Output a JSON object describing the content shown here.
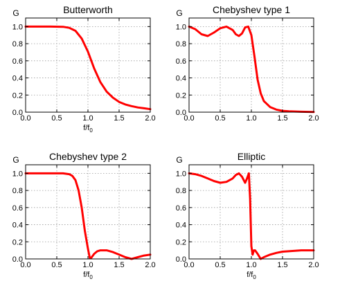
{
  "colors": {
    "curve": "#ff0000",
    "grid": "#999999",
    "frame": "#000000"
  },
  "chart_data": [
    {
      "type": "line",
      "title": "Butterworth",
      "ylabel": "G",
      "xlabel": "f/f0",
      "xlim": [
        0,
        2
      ],
      "ylim": [
        0,
        1.1
      ],
      "xticks": [
        "0.0",
        "0.5",
        "1.0",
        "1.5",
        "2.0"
      ],
      "yticks": [
        "0.0",
        "0.2",
        "0.4",
        "0.6",
        "0.8",
        "1.0"
      ],
      "grid": true,
      "series": [
        {
          "x": [
            0,
            0.2,
            0.4,
            0.6,
            0.7,
            0.8,
            0.9,
            1.0,
            1.1,
            1.2,
            1.3,
            1.4,
            1.5,
            1.6,
            1.7,
            1.8,
            1.9,
            2.0
          ],
          "y": [
            1.0,
            1.0,
            1.0,
            0.997,
            0.985,
            0.95,
            0.86,
            0.707,
            0.51,
            0.35,
            0.24,
            0.17,
            0.12,
            0.09,
            0.07,
            0.055,
            0.045,
            0.035
          ]
        }
      ]
    },
    {
      "type": "line",
      "title": "Chebyshev type 1",
      "ylabel": "G",
      "xlabel": "",
      "xlim": [
        0,
        2
      ],
      "ylim": [
        0,
        1.1
      ],
      "xticks": [
        "0.0",
        "0.5",
        "1.0",
        "1.5",
        "2.0"
      ],
      "yticks": [
        "0.0",
        "0.2",
        "0.4",
        "0.6",
        "0.8",
        "1.0"
      ],
      "grid": true,
      "series": [
        {
          "x": [
            0,
            0.1,
            0.2,
            0.3,
            0.4,
            0.5,
            0.6,
            0.7,
            0.75,
            0.8,
            0.85,
            0.9,
            0.95,
            1.0,
            1.05,
            1.1,
            1.15,
            1.2,
            1.3,
            1.4,
            1.5,
            1.6,
            1.8,
            2.0
          ],
          "y": [
            1.0,
            0.97,
            0.91,
            0.89,
            0.93,
            0.98,
            1.0,
            0.96,
            0.91,
            0.89,
            0.92,
            0.99,
            1.0,
            0.9,
            0.65,
            0.38,
            0.22,
            0.13,
            0.06,
            0.03,
            0.015,
            0.01,
            0.005,
            0.002
          ]
        }
      ]
    },
    {
      "type": "line",
      "title": "Chebyshev type 2",
      "ylabel": "G",
      "xlabel": "f/f0",
      "xlim": [
        0,
        2
      ],
      "ylim": [
        0,
        1.1
      ],
      "xticks": [
        "0.0",
        "0.5",
        "1.0",
        "1.5",
        "2.0"
      ],
      "yticks": [
        "0.0",
        "0.2",
        "0.4",
        "0.6",
        "0.8",
        "1.0"
      ],
      "grid": true,
      "series": [
        {
          "x": [
            0,
            0.2,
            0.4,
            0.6,
            0.7,
            0.75,
            0.8,
            0.85,
            0.9,
            0.95,
            1.0,
            1.03,
            1.05,
            1.1,
            1.15,
            1.2,
            1.3,
            1.4,
            1.5,
            1.6,
            1.7,
            1.8,
            1.9,
            2.0
          ],
          "y": [
            1.0,
            1.0,
            1.0,
            1.0,
            0.99,
            0.97,
            0.92,
            0.8,
            0.6,
            0.33,
            0.12,
            0.01,
            0.01,
            0.06,
            0.09,
            0.1,
            0.1,
            0.08,
            0.05,
            0.02,
            0.0,
            0.02,
            0.04,
            0.05
          ]
        }
      ]
    },
    {
      "type": "line",
      "title": "Elliptic",
      "ylabel": "G",
      "xlabel": "f/f0",
      "xlim": [
        0,
        2
      ],
      "ylim": [
        0,
        1.1
      ],
      "xticks": [
        "0.0",
        "0.5",
        "1.0",
        "1.5",
        "2.0"
      ],
      "yticks": [
        "0.0",
        "0.2",
        "0.4",
        "0.6",
        "0.8",
        "1.0"
      ],
      "grid": true,
      "series": [
        {
          "x": [
            0,
            0.1,
            0.2,
            0.3,
            0.4,
            0.5,
            0.6,
            0.7,
            0.75,
            0.8,
            0.85,
            0.9,
            0.93,
            0.96,
            0.98,
            1.0,
            1.02,
            1.04,
            1.06,
            1.1,
            1.15,
            1.2,
            1.3,
            1.4,
            1.5,
            1.6,
            1.7,
            1.8,
            2.0
          ],
          "y": [
            1.0,
            0.99,
            0.97,
            0.94,
            0.91,
            0.89,
            0.9,
            0.94,
            0.98,
            1.0,
            0.96,
            0.89,
            0.94,
            1.0,
            0.7,
            0.15,
            0.05,
            0.1,
            0.1,
            0.06,
            0.0,
            0.02,
            0.05,
            0.07,
            0.085,
            0.09,
            0.095,
            0.1,
            0.1
          ]
        }
      ]
    }
  ]
}
